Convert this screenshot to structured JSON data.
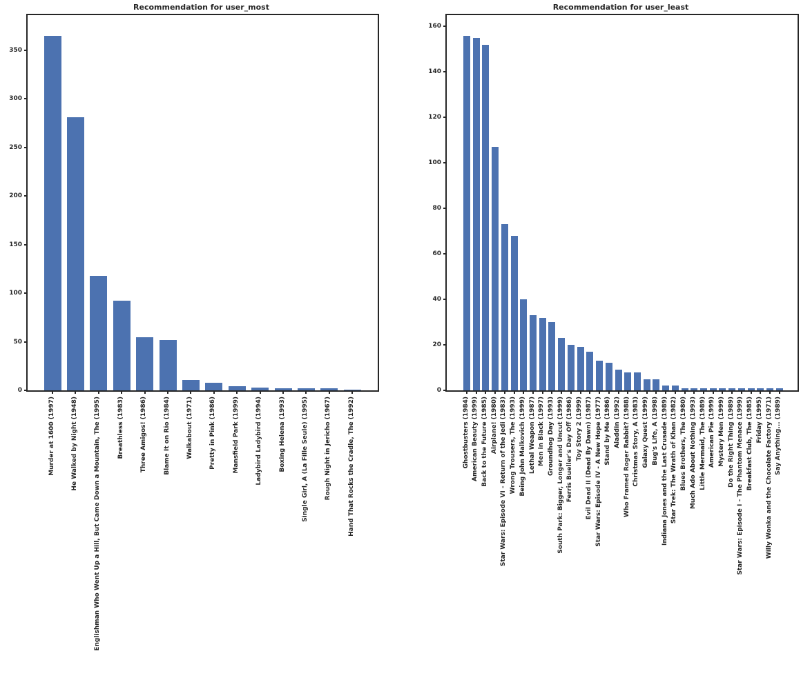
{
  "figure": {
    "background": "#ffffff",
    "bar_color": "#4C72B0",
    "spine_color": "#262626",
    "text_color": "#262626"
  },
  "chart_data": [
    {
      "type": "bar",
      "title": "Recommendation for user_most",
      "xlabel": "",
      "ylabel": "",
      "grid": false,
      "legend": "none",
      "yticks": [
        0,
        50,
        100,
        150,
        200,
        250,
        300,
        350
      ],
      "ylim": [
        0,
        386
      ],
      "categories": [
        "Murder at 1600 (1997)",
        "He Walked by Night (1948)",
        "Englishman Who Went Up a Hill, But Came Down a Mountain, The (1995)",
        "Breathless (1983)",
        "Three Amigos! (1986)",
        "Blame It on Rio (1984)",
        "Walkabout (1971)",
        "Pretty in Pink (1986)",
        "Mansfield Park (1999)",
        "Ladybird Ladybird (1994)",
        "Boxing Helena (1993)",
        "Single Girl, A (La Fille Seule) (1995)",
        "Rough Night in Jericho (1967)",
        "Hand That Rocks the Cradle, The (1992)"
      ],
      "values": [
        365,
        281,
        118,
        92,
        55,
        52,
        11,
        8,
        4,
        3,
        2,
        2,
        2,
        1
      ]
    },
    {
      "type": "bar",
      "title": "Recommendation for user_least",
      "xlabel": "",
      "ylabel": "",
      "grid": false,
      "legend": "none",
      "yticks": [
        0,
        20,
        40,
        60,
        80,
        100,
        120,
        140,
        160
      ],
      "ylim": [
        0,
        165
      ],
      "categories": [
        "Ghostbusters (1984)",
        "American Beauty (1999)",
        "Back to the Future (1985)",
        "Airplane! (1980)",
        "Star Wars: Episode VI - Return of the Jedi (1983)",
        "Wrong Trousers, The (1993)",
        "Being John Malkovich (1999)",
        "Lethal Weapon (1987)",
        "Men in Black (1997)",
        "Groundhog Day (1993)",
        "South Park: Bigger, Longer and Uncut (1999)",
        "Ferris Bueller's Day Off (1986)",
        "Toy Story 2 (1999)",
        "Evil Dead II (Dead By Dawn) (1987)",
        "Star Wars: Episode IV - A New Hope (1977)",
        "Stand by Me (1986)",
        "Aladdin (1992)",
        "Who Framed Roger Rabbit? (1988)",
        "Christmas Story, A (1983)",
        "Galaxy Quest (1999)",
        "Bug's Life, A (1998)",
        "Indiana Jones and the Last Crusade (1989)",
        "Star Trek: The Wrath of Khan (1982)",
        "Blues Brothers, The (1980)",
        "Much Ado About Nothing (1993)",
        "Little Mermaid, The (1989)",
        "American Pie (1999)",
        "Mystery Men (1999)",
        "Do the Right Thing (1989)",
        "Star Wars: Episode I - The Phantom Menace (1999)",
        "Breakfast Club, The (1985)",
        "Friday (1995)",
        "Willy Wonka and the Chocolate Factory (1971)",
        "Say Anything... (1989)"
      ],
      "values": [
        156,
        155,
        152,
        107,
        73,
        68,
        40,
        33,
        32,
        30,
        23,
        20,
        19,
        17,
        13,
        12,
        9,
        8,
        8,
        5,
        5,
        2,
        2,
        1,
        1,
        1,
        1,
        1,
        1,
        1,
        1,
        1,
        1,
        1
      ]
    }
  ]
}
